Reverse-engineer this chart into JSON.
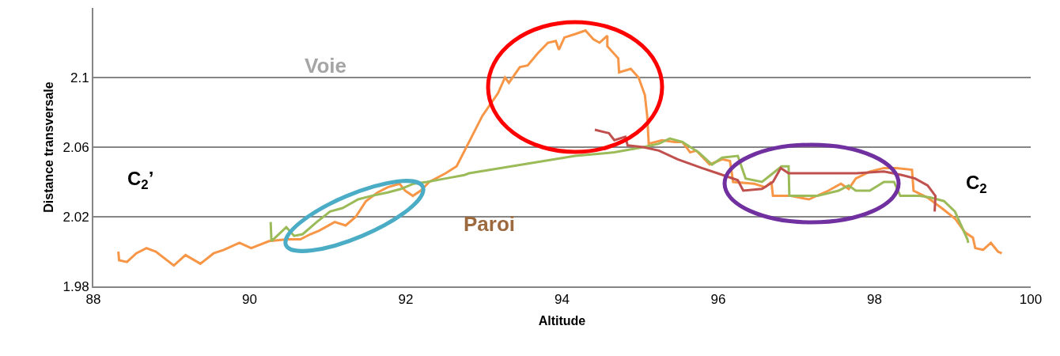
{
  "chart_data": {
    "type": "line",
    "xlabel": "Altitude",
    "ylabel": "Distance transversale",
    "xlim": [
      88,
      100
    ],
    "xticks": [
      88,
      90,
      92,
      94,
      96,
      98,
      100
    ],
    "ylim": [
      1.98,
      2.14
    ],
    "yticks": [
      1.98,
      2.02,
      2.06,
      2.1
    ],
    "grid": "y",
    "line_style": "solid",
    "annotations": [
      "Voie",
      "Paroi",
      "C$_{2}$’",
      "C$_{2}$"
    ],
    "series": [
      {
        "color": "#f79646",
        "x": [
          88.32,
          88.33,
          88.43,
          88.55,
          88.68,
          88.8,
          89.03,
          89.18,
          89.37,
          89.54,
          89.67,
          89.87,
          90.02,
          90.25,
          90.48,
          90.65,
          90.78,
          90.89,
          91.09,
          91.23,
          91.36,
          91.49,
          91.64,
          91.77,
          91.92,
          91.99,
          92.09,
          92.19,
          92.3,
          92.51,
          92.65,
          92.81,
          92.98,
          93.18,
          93.27,
          93.32,
          93.46,
          93.56,
          93.69,
          93.82,
          93.92,
          93.96,
          94.03,
          94.17,
          94.3,
          94.4,
          94.48,
          94.58,
          94.58,
          94.72,
          94.73,
          94.88,
          94.98,
          95.06,
          95.09,
          95.11,
          95.28,
          95.44,
          95.54,
          95.64,
          95.72,
          95.89,
          96.05,
          96.15,
          96.19,
          96.46,
          96.6,
          96.68,
          96.7,
          96.93,
          97.16,
          97.41,
          97.57,
          97.67,
          97.76,
          97.94,
          98.12,
          98.28,
          98.48,
          98.5,
          98.68,
          98.86,
          99.03,
          99.16,
          99.26,
          99.29,
          99.39,
          99.49,
          99.58,
          99.63
        ],
        "values": [
          2.0,
          1.995,
          1.994,
          1.999,
          2.002,
          2.0,
          1.992,
          1.998,
          1.993,
          1.999,
          2.001,
          2.005,
          2.002,
          2.006,
          2.007,
          2.007,
          2.01,
          2.012,
          2.017,
          2.015,
          2.02,
          2.029,
          2.034,
          2.037,
          2.039,
          2.035,
          2.032,
          2.035,
          2.04,
          2.045,
          2.049,
          2.063,
          2.078,
          2.091,
          2.1,
          2.097,
          2.106,
          2.107,
          2.114,
          2.12,
          2.121,
          2.116,
          2.123,
          2.125,
          2.127,
          2.122,
          2.12,
          2.124,
          2.118,
          2.111,
          2.103,
          2.105,
          2.1,
          2.09,
          2.078,
          2.062,
          2.064,
          2.063,
          2.063,
          2.057,
          2.058,
          2.05,
          2.053,
          2.052,
          2.04,
          2.039,
          2.037,
          2.04,
          2.032,
          2.032,
          2.03,
          2.035,
          2.039,
          2.036,
          2.042,
          2.046,
          2.048,
          2.048,
          2.047,
          2.035,
          2.031,
          2.025,
          2.019,
          2.011,
          2.008,
          2.002,
          2.001,
          2.005,
          2.0,
          1.999
        ]
      },
      {
        "color": "#9bbb59",
        "x": [
          90.27,
          90.28,
          90.47,
          90.57,
          90.68,
          90.86,
          91.03,
          91.19,
          91.39,
          91.56,
          91.77,
          91.94,
          92.1,
          92.27,
          92.51,
          92.75,
          92.81,
          93.49,
          94.17,
          94.67,
          95.04,
          95.24,
          95.38,
          95.54,
          95.75,
          95.92,
          96.05,
          96.25,
          96.35,
          96.56,
          96.7,
          96.81,
          96.9,
          96.91,
          97.27,
          97.54,
          97.67,
          97.76,
          97.94,
          98.12,
          98.25,
          98.33,
          98.48,
          98.58,
          98.72,
          98.89,
          99.03,
          99.19,
          99.2
        ],
        "values": [
          2.017,
          2.006,
          2.014,
          2.009,
          2.01,
          2.017,
          2.023,
          2.025,
          2.03,
          2.032,
          2.034,
          2.036,
          2.039,
          2.04,
          2.042,
          2.044,
          2.045,
          2.05,
          2.055,
          2.057,
          2.06,
          2.062,
          2.065,
          2.063,
          2.057,
          2.05,
          2.054,
          2.055,
          2.042,
          2.04,
          2.045,
          2.049,
          2.049,
          2.032,
          2.032,
          2.035,
          2.038,
          2.035,
          2.035,
          2.04,
          2.04,
          2.032,
          2.032,
          2.032,
          2.031,
          2.029,
          2.023,
          2.007,
          2.005
        ]
      },
      {
        "color": "#c0504d",
        "x": [
          94.42,
          94.6,
          94.67,
          94.81,
          94.84,
          95.04,
          95.24,
          95.48,
          95.79,
          95.99,
          96.25,
          96.32,
          96.56,
          96.7,
          96.8,
          96.9,
          97.1,
          97.44,
          97.77,
          98.12,
          98.35,
          98.52,
          98.68,
          98.78,
          98.77
        ],
        "values": [
          2.07,
          2.068,
          2.064,
          2.066,
          2.061,
          2.06,
          2.058,
          2.053,
          2.048,
          2.045,
          2.041,
          2.035,
          2.036,
          2.04,
          2.048,
          2.045,
          2.045,
          2.045,
          2.045,
          2.046,
          2.044,
          2.042,
          2.038,
          2.032,
          2.023
        ]
      }
    ]
  }
}
